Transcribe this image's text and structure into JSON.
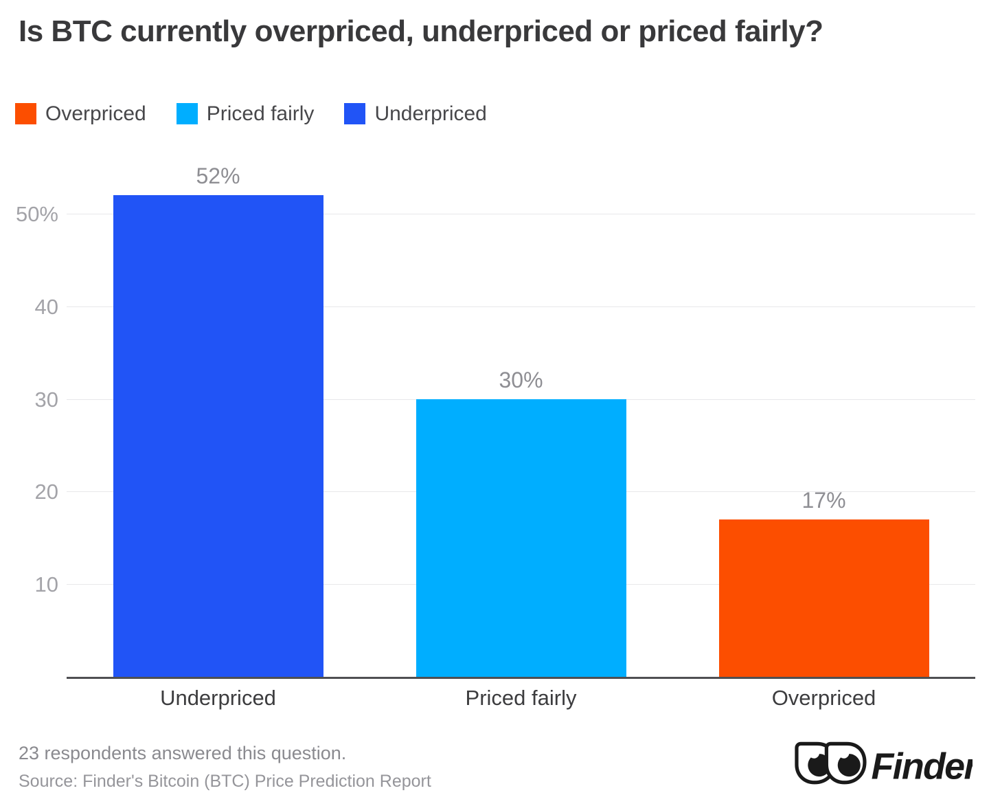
{
  "title": "Is BTC currently overpriced, underpriced or priced fairly?",
  "legend": [
    {
      "label": "Overpriced",
      "color": "#fc4e00"
    },
    {
      "label": "Priced fairly",
      "color": "#00aeff"
    },
    {
      "label": "Underpriced",
      "color": "#2154f6"
    }
  ],
  "chart_data": {
    "type": "bar",
    "title": "Is BTC currently overpriced, underpriced or priced fairly?",
    "categories": [
      "Underpriced",
      "Priced fairly",
      "Overpriced"
    ],
    "values": [
      52,
      30,
      17
    ],
    "value_labels": [
      "52%",
      "30%",
      "17%"
    ],
    "bar_colors": [
      "#2154f6",
      "#00aeff",
      "#fc4e00"
    ],
    "xlabel": "",
    "ylabel": "",
    "ylim": [
      0,
      55
    ],
    "yticks": [
      {
        "value": 10,
        "label": "10"
      },
      {
        "value": 20,
        "label": "20"
      },
      {
        "value": 30,
        "label": "30"
      },
      {
        "value": 40,
        "label": "40"
      },
      {
        "value": 50,
        "label": "50%"
      }
    ],
    "grid": true,
    "legend_position": "top-left",
    "gridline_color": "#e8e8ea",
    "baseline_color": "#4f4f52"
  },
  "footer": {
    "respondents_note": "23 respondents answered this question.",
    "source": "Source: Finder's Bitcoin (BTC) Price Prediction Report"
  },
  "branding": {
    "logo_text": "Finder",
    "logo_mark": "finder-eyes-icon"
  }
}
